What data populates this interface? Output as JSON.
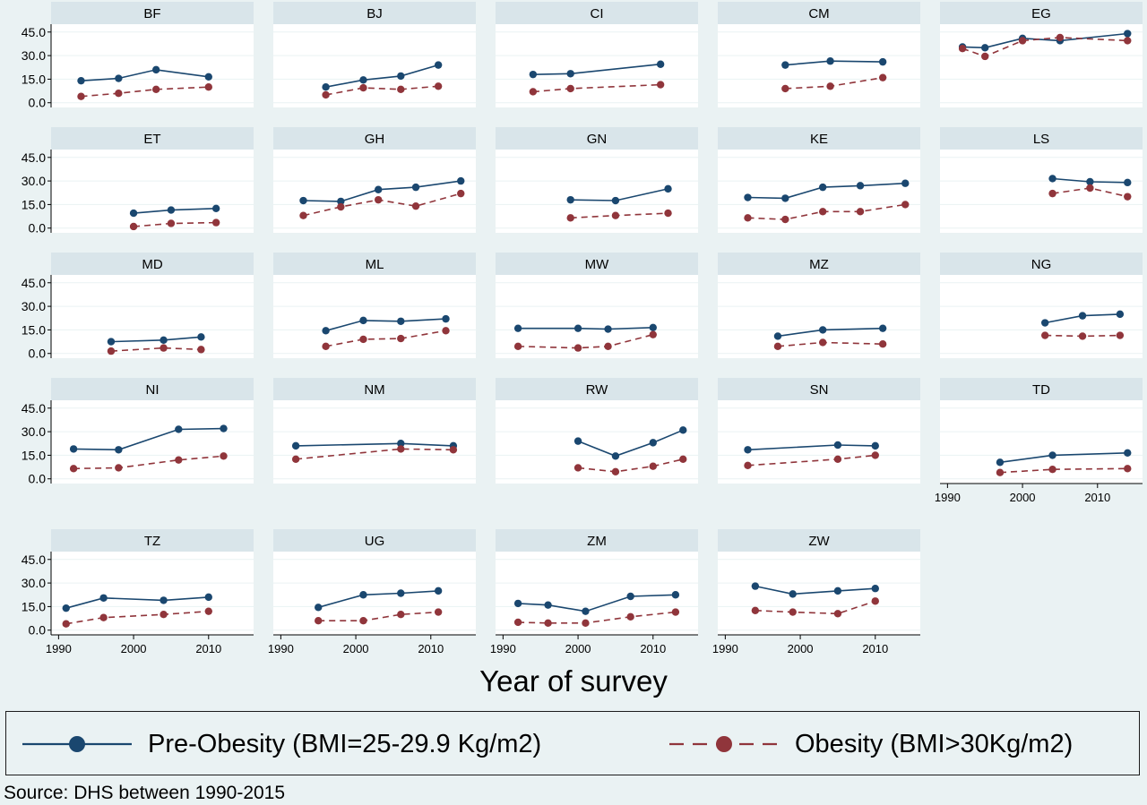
{
  "chart_data": {
    "type": "line",
    "xlabel": "Year of survey",
    "ylabel": "",
    "xticks": [
      1990,
      2000,
      2010
    ],
    "yticks": [
      "0.0",
      "15.0",
      "30.0",
      "45.0"
    ],
    "xlim": [
      1989,
      2016
    ],
    "ylim": [
      -3,
      50
    ],
    "legend_position": "bottom",
    "series_styles": [
      {
        "name": "Pre-Obesity (BMI=25-29.9 Kg/m2)",
        "color": "#1a476f",
        "dash": "solid"
      },
      {
        "name": "Obesity (BMI>30Kg/m2)",
        "color": "#90353b",
        "dash": "dashed"
      }
    ],
    "panels": [
      {
        "title": "BF",
        "pre": [
          [
            1993,
            14
          ],
          [
            1998,
            15.5
          ],
          [
            2003,
            21
          ],
          [
            2010,
            16.5
          ]
        ],
        "ob": [
          [
            1993,
            4
          ],
          [
            1998,
            6
          ],
          [
            2003,
            8.5
          ],
          [
            2010,
            10
          ]
        ]
      },
      {
        "title": "BJ",
        "pre": [
          [
            1996,
            10
          ],
          [
            2001,
            14.5
          ],
          [
            2006,
            17
          ],
          [
            2011,
            24
          ]
        ],
        "ob": [
          [
            1996,
            5
          ],
          [
            2001,
            9.5
          ],
          [
            2006,
            8.5
          ],
          [
            2011,
            10.5
          ]
        ]
      },
      {
        "title": "CI",
        "pre": [
          [
            1994,
            18
          ],
          [
            1999,
            18.5
          ],
          [
            2011,
            24.5
          ]
        ],
        "ob": [
          [
            1994,
            7
          ],
          [
            1999,
            9
          ],
          [
            2011,
            11.5
          ]
        ]
      },
      {
        "title": "CM",
        "pre": [
          [
            1998,
            24
          ],
          [
            2004,
            26.5
          ],
          [
            2011,
            26
          ]
        ],
        "ob": [
          [
            1998,
            9
          ],
          [
            2004,
            10.5
          ],
          [
            2011,
            16
          ]
        ]
      },
      {
        "title": "EG",
        "pre": [
          [
            1992,
            35.5
          ],
          [
            1995,
            35
          ],
          [
            2000,
            41
          ],
          [
            2005,
            39.5
          ],
          [
            2014,
            44
          ]
        ],
        "ob": [
          [
            1992,
            34.5
          ],
          [
            1995,
            29.5
          ],
          [
            2000,
            39.5
          ],
          [
            2005,
            41.5
          ],
          [
            2014,
            39.5
          ]
        ]
      },
      {
        "title": "ET",
        "pre": [
          [
            2000,
            9.5
          ],
          [
            2005,
            11.5
          ],
          [
            2011,
            12.5
          ]
        ],
        "ob": [
          [
            2000,
            1
          ],
          [
            2005,
            3
          ],
          [
            2011,
            3.5
          ]
        ]
      },
      {
        "title": "GH",
        "pre": [
          [
            1993,
            17.5
          ],
          [
            1998,
            17
          ],
          [
            2003,
            24.5
          ],
          [
            2008,
            26
          ],
          [
            2014,
            30
          ]
        ],
        "ob": [
          [
            1993,
            8
          ],
          [
            1998,
            13.5
          ],
          [
            2003,
            18
          ],
          [
            2008,
            14
          ],
          [
            2014,
            22
          ]
        ]
      },
      {
        "title": "GN",
        "pre": [
          [
            1999,
            18
          ],
          [
            2005,
            17.5
          ],
          [
            2012,
            25
          ]
        ],
        "ob": [
          [
            1999,
            6.5
          ],
          [
            2005,
            8
          ],
          [
            2012,
            9.5
          ]
        ]
      },
      {
        "title": "KE",
        "pre": [
          [
            1993,
            19.5
          ],
          [
            1998,
            19
          ],
          [
            2003,
            26
          ],
          [
            2008,
            27
          ],
          [
            2014,
            28.5
          ]
        ],
        "ob": [
          [
            1993,
            6.5
          ],
          [
            1998,
            5.5
          ],
          [
            2003,
            10.5
          ],
          [
            2008,
            10.5
          ],
          [
            2014,
            15
          ]
        ]
      },
      {
        "title": "LS",
        "pre": [
          [
            2004,
            31.5
          ],
          [
            2009,
            29.5
          ],
          [
            2014,
            29
          ]
        ],
        "ob": [
          [
            2004,
            22
          ],
          [
            2009,
            25.5
          ],
          [
            2014,
            20
          ]
        ]
      },
      {
        "title": "MD",
        "pre": [
          [
            1997,
            7.5
          ],
          [
            2004,
            8.5
          ],
          [
            2009,
            10.5
          ]
        ],
        "ob": [
          [
            1997,
            1.5
          ],
          [
            2004,
            3.5
          ],
          [
            2009,
            2.5
          ]
        ]
      },
      {
        "title": "ML",
        "pre": [
          [
            1996,
            14.5
          ],
          [
            2001,
            21
          ],
          [
            2006,
            20.5
          ],
          [
            2012,
            22
          ]
        ],
        "ob": [
          [
            1996,
            4.5
          ],
          [
            2001,
            9
          ],
          [
            2006,
            9.5
          ],
          [
            2012,
            14.5
          ]
        ]
      },
      {
        "title": "MW",
        "pre": [
          [
            1992,
            16
          ],
          [
            2000,
            16
          ],
          [
            2004,
            15.5
          ],
          [
            2010,
            16.5
          ]
        ],
        "ob": [
          [
            1992,
            4.5
          ],
          [
            2000,
            3.5
          ],
          [
            2004,
            4.5
          ],
          [
            2010,
            12
          ]
        ]
      },
      {
        "title": "MZ",
        "pre": [
          [
            1997,
            11
          ],
          [
            2003,
            15
          ],
          [
            2011,
            16
          ]
        ],
        "ob": [
          [
            1997,
            4.5
          ],
          [
            2003,
            7
          ],
          [
            2011,
            6
          ]
        ]
      },
      {
        "title": "NG",
        "pre": [
          [
            2003,
            19.5
          ],
          [
            2008,
            24
          ],
          [
            2013,
            25
          ]
        ],
        "ob": [
          [
            2003,
            11.5
          ],
          [
            2008,
            11
          ],
          [
            2013,
            11.5
          ]
        ]
      },
      {
        "title": "NI",
        "pre": [
          [
            1992,
            19
          ],
          [
            1998,
            18.5
          ],
          [
            2006,
            31.5
          ],
          [
            2012,
            32
          ]
        ],
        "ob": [
          [
            1992,
            6.5
          ],
          [
            1998,
            7
          ],
          [
            2006,
            12
          ],
          [
            2012,
            14.5
          ]
        ]
      },
      {
        "title": "NM",
        "pre": [
          [
            1992,
            21
          ],
          [
            2006,
            22.5
          ],
          [
            2013,
            21
          ]
        ],
        "ob": [
          [
            1992,
            12.5
          ],
          [
            2006,
            19
          ],
          [
            2013,
            18.5
          ]
        ]
      },
      {
        "title": "RW",
        "pre": [
          [
            2000,
            24
          ],
          [
            2005,
            14.5
          ],
          [
            2010,
            23
          ],
          [
            2014,
            31
          ]
        ],
        "ob": [
          [
            2000,
            7
          ],
          [
            2005,
            4.5
          ],
          [
            2010,
            8
          ],
          [
            2014,
            12.5
          ]
        ]
      },
      {
        "title": "SN",
        "pre": [
          [
            1993,
            18.5
          ],
          [
            2005,
            21.5
          ],
          [
            2010,
            21
          ]
        ],
        "ob": [
          [
            1993,
            8.5
          ],
          [
            2005,
            12.5
          ],
          [
            2010,
            15
          ]
        ]
      },
      {
        "title": "TD",
        "pre": [
          [
            1997,
            10.5
          ],
          [
            2004,
            15
          ],
          [
            2014,
            16.5
          ]
        ],
        "ob": [
          [
            1997,
            4
          ],
          [
            2004,
            6
          ],
          [
            2014,
            6.5
          ]
        ]
      },
      {
        "title": "TZ",
        "pre": [
          [
            1991,
            14
          ],
          [
            1996,
            20.5
          ],
          [
            2004,
            19
          ],
          [
            2010,
            21
          ]
        ],
        "ob": [
          [
            1991,
            4
          ],
          [
            1996,
            8
          ],
          [
            2004,
            10
          ],
          [
            2010,
            12
          ]
        ]
      },
      {
        "title": "UG",
        "pre": [
          [
            1995,
            14.5
          ],
          [
            2001,
            22.5
          ],
          [
            2006,
            23.5
          ],
          [
            2011,
            25
          ]
        ],
        "ob": [
          [
            1995,
            6
          ],
          [
            2001,
            6
          ],
          [
            2006,
            10
          ],
          [
            2011,
            11.5
          ]
        ]
      },
      {
        "title": "ZM",
        "pre": [
          [
            1992,
            17
          ],
          [
            1996,
            16
          ],
          [
            2001,
            12
          ],
          [
            2007,
            21.5
          ],
          [
            2013,
            22.5
          ]
        ],
        "ob": [
          [
            1992,
            5
          ],
          [
            1996,
            4.5
          ],
          [
            2001,
            4.5
          ],
          [
            2007,
            8.5
          ],
          [
            2013,
            11.5
          ]
        ]
      },
      {
        "title": "ZW",
        "pre": [
          [
            1994,
            28
          ],
          [
            1999,
            23
          ],
          [
            2005,
            25
          ],
          [
            2010,
            26.5
          ]
        ],
        "ob": [
          [
            1994,
            12.5
          ],
          [
            1999,
            11.5
          ],
          [
            2005,
            10.5
          ],
          [
            2010,
            18.5
          ]
        ]
      }
    ]
  },
  "legend": {
    "pre_label": "Pre-Obesity (BMI=25-29.9 Kg/m2)",
    "ob_label": "Obesity (BMI>30Kg/m2)"
  },
  "source": "Source: DHS between 1990-2015"
}
